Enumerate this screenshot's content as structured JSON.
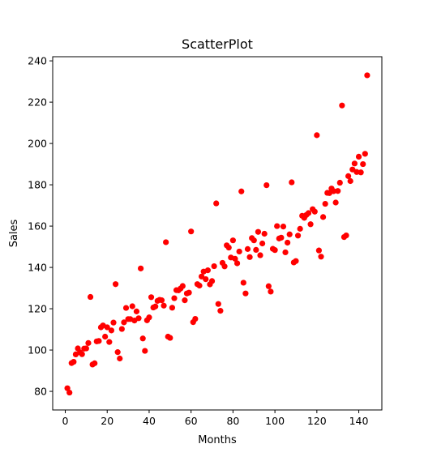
{
  "chart_data": {
    "type": "scatter",
    "title": "ScatterPlot",
    "xlabel": "Months",
    "ylabel": "Sales",
    "xlim": [
      -6,
      151
    ],
    "ylim": [
      71,
      242
    ],
    "xticks": [
      0,
      20,
      40,
      60,
      80,
      100,
      120,
      140
    ],
    "yticks": [
      80,
      100,
      120,
      140,
      160,
      180,
      200,
      220,
      240
    ],
    "grid": false,
    "marker_color": "#ff0000",
    "series": [
      {
        "name": "Sales",
        "x": [
          1,
          2,
          3,
          4,
          5,
          6,
          7,
          8,
          9,
          10,
          11,
          12,
          13,
          14,
          15,
          16,
          17,
          18,
          19,
          20,
          21,
          22,
          23,
          24,
          25,
          26,
          27,
          28,
          29,
          30,
          31,
          32,
          33,
          34,
          35,
          36,
          37,
          38,
          39,
          40,
          41,
          42,
          43,
          44,
          45,
          46,
          47,
          48,
          49,
          50,
          51,
          52,
          53,
          54,
          55,
          56,
          57,
          58,
          59,
          60,
          61,
          62,
          63,
          64,
          65,
          66,
          67,
          68,
          69,
          70,
          71,
          72,
          73,
          74,
          75,
          76,
          77,
          78,
          79,
          80,
          81,
          82,
          83,
          84,
          85,
          86,
          87,
          88,
          89,
          90,
          91,
          92,
          93,
          94,
          95,
          96,
          97,
          98,
          99,
          100,
          101,
          102,
          103,
          104,
          105,
          106,
          107,
          108,
          109,
          110,
          111,
          112,
          113,
          114,
          115,
          116,
          117,
          118,
          119,
          120,
          121,
          122,
          123,
          124,
          125,
          126,
          127,
          128,
          129,
          130,
          131,
          132,
          133,
          134,
          135,
          136,
          137,
          138,
          139,
          140,
          141,
          142,
          143,
          144
        ],
        "y": [
          81.5,
          79.4,
          93.7,
          94.3,
          97.9,
          100.8,
          98.9,
          98.0,
          100.7,
          100.8,
          103.4,
          125.7,
          93.0,
          93.6,
          104.2,
          104.4,
          111.0,
          111.9,
          106.5,
          111.0,
          103.9,
          109.5,
          113.3,
          131.9,
          99.0,
          95.9,
          110.2,
          113.4,
          120.4,
          115.0,
          115.0,
          121.2,
          114.3,
          118.7,
          115.4,
          139.5,
          105.6,
          99.6,
          114.4,
          115.8,
          125.6,
          120.6,
          121.1,
          123.8,
          124.3,
          124.1,
          121.5,
          152.2,
          106.5,
          105.9,
          120.5,
          125.1,
          129.0,
          128.9,
          129.8,
          131.0,
          124.1,
          127.4,
          127.8,
          157.4,
          113.5,
          115.1,
          131.9,
          131.2,
          135.6,
          138.0,
          134.3,
          138.6,
          131.8,
          133.4,
          140.6,
          171.0,
          122.3,
          119.0,
          142.2,
          140.5,
          150.7,
          149.6,
          144.8,
          153.1,
          144.2,
          142.0,
          147.7,
          176.8,
          132.6,
          127.4,
          148.9,
          145.0,
          154.2,
          153.1,
          148.5,
          157.2,
          145.9,
          151.6,
          156.3,
          179.8,
          130.9,
          128.3,
          149.0,
          148.4,
          160.0,
          154.0,
          154.4,
          159.8,
          147.3,
          152.0,
          156.0,
          181.2,
          142.4,
          143.1,
          155.4,
          158.7,
          165.0,
          164.0,
          165.4,
          166.3,
          160.9,
          168.2,
          167.0,
          204.0,
          148.2,
          145.2,
          164.4,
          170.8,
          176.1,
          176.0,
          178.2,
          176.9,
          171.4,
          177.0,
          181.0,
          218.4,
          154.7,
          155.5,
          184.2,
          181.8,
          187.4,
          190.3,
          186.2,
          193.6,
          186.0,
          190.0,
          195.0,
          233.0
        ]
      }
    ]
  }
}
